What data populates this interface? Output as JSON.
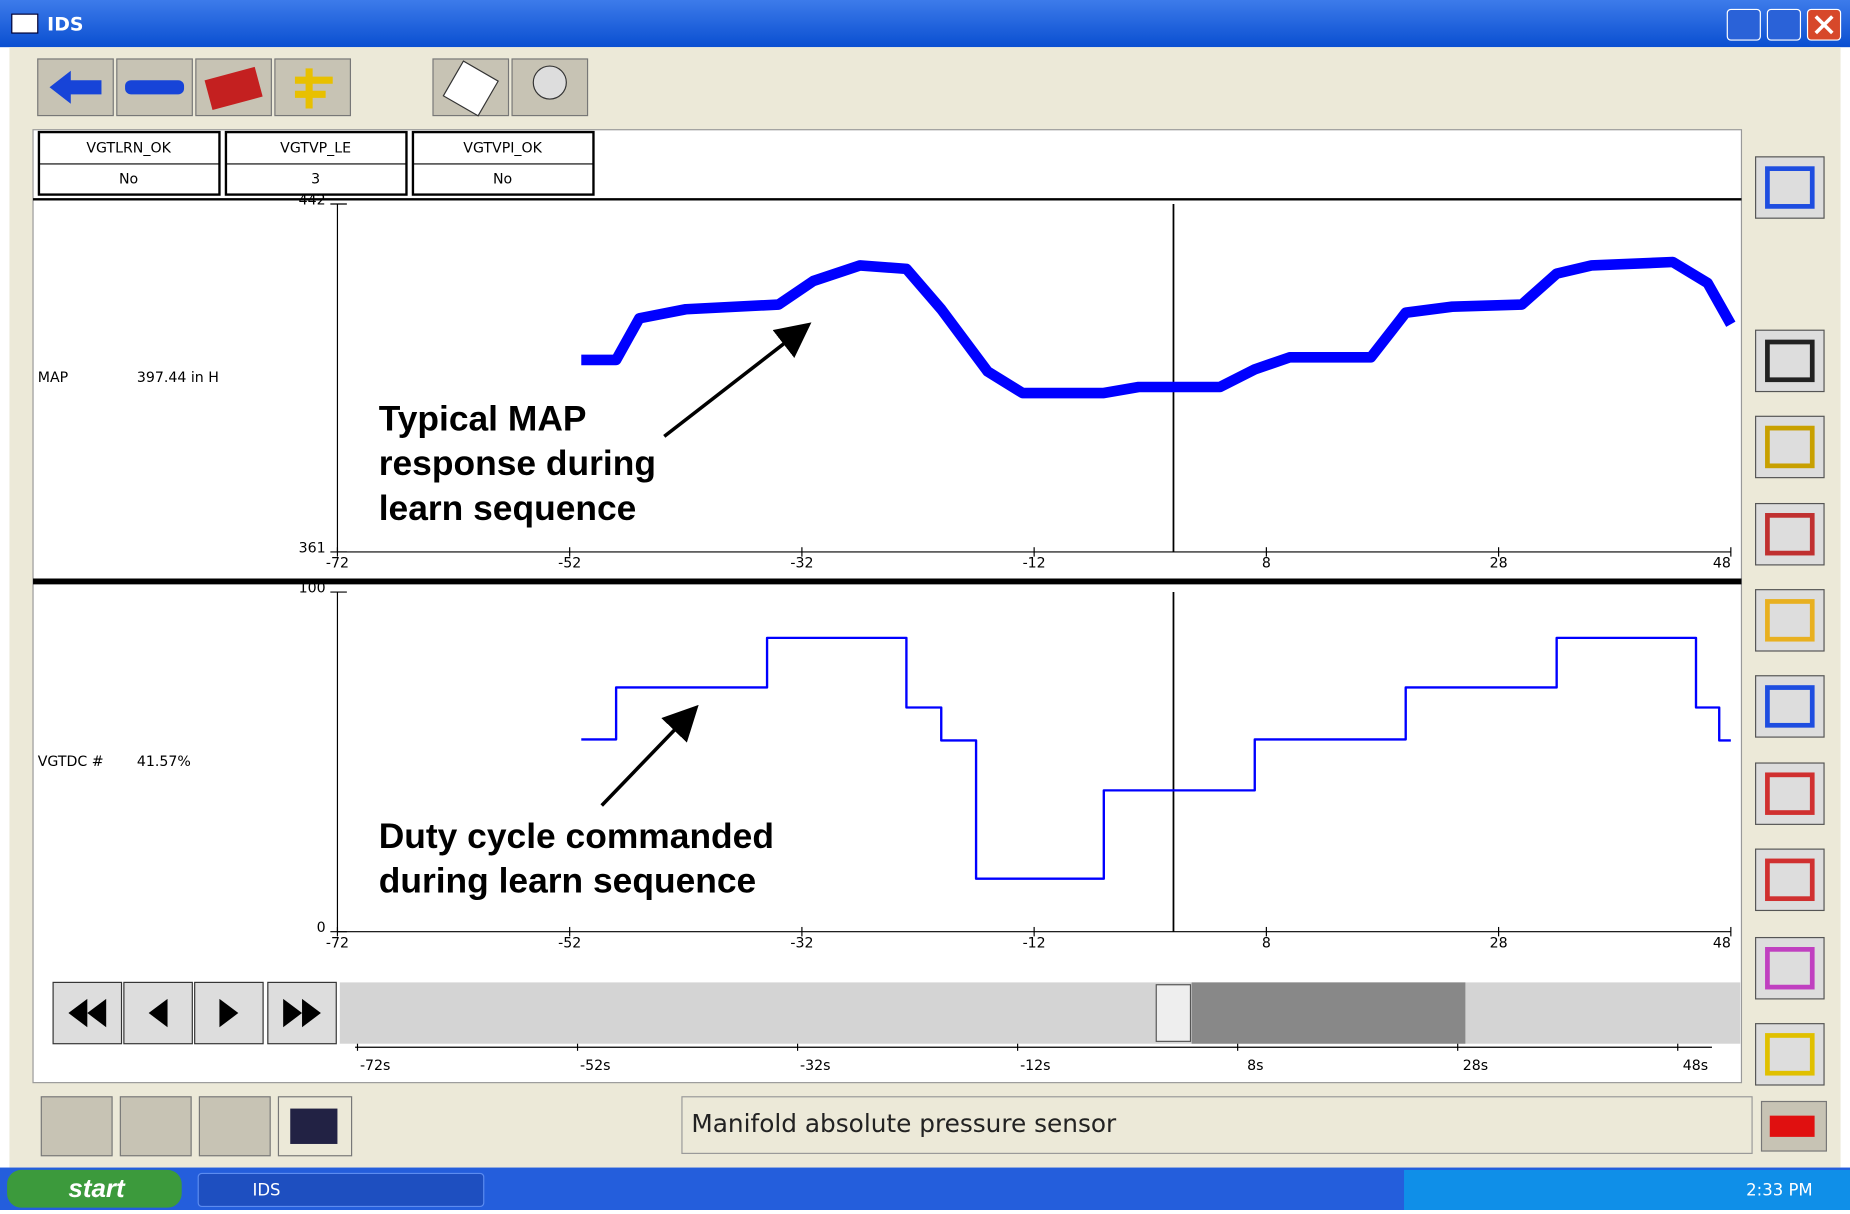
{
  "window": {
    "title": "IDS"
  },
  "parameters": [
    {
      "name": "VGTLRN_OK",
      "value": "No"
    },
    {
      "name": "VGTVP_LE",
      "value": 3
    },
    {
      "name": "VGTVPI_OK",
      "value": "No"
    }
  ],
  "chart_data": [
    {
      "type": "line",
      "readout": "397.44 in H",
      "annotation": [
        "Typical MAP",
        "response during",
        "learn sequence"
      ],
      "xlim": [
        -72,
        48
      ],
      "xticks": [
        -72,
        -52,
        -32,
        -12,
        8,
        28,
        48
      ],
      "ylim": [
        361,
        442
      ],
      "yticks": [
        361,
        442
      ],
      "cursor": 0,
      "x": [
        -51,
        -48,
        -46,
        -42,
        -34,
        -31,
        -27,
        -23,
        -20,
        -16,
        -13,
        -6,
        -3,
        4,
        7,
        10,
        17,
        20,
        24,
        30,
        33,
        36,
        43,
        46,
        48
      ],
      "series": [
        {
          "name": "MAP",
          "color": "#0000ff",
          "values": [
            405.7,
            405.7,
            415.4,
            417.5,
            418.6,
            424.1,
            427.7,
            426.9,
            417.5,
            403.0,
            398.0,
            398.0,
            399.4,
            399.4,
            403.5,
            406.3,
            406.3,
            416.7,
            418.1,
            418.6,
            425.8,
            427.7,
            428.5,
            423.6,
            414.0
          ]
        }
      ]
    },
    {
      "type": "line",
      "readout": "41.57%",
      "annotation": [
        "Duty cycle commanded",
        "during learn sequence"
      ],
      "xlim": [
        -72,
        48
      ],
      "xticks": [
        -72,
        -52,
        -32,
        -12,
        8,
        28,
        48
      ],
      "ylim": [
        0,
        100
      ],
      "yticks": [
        0,
        100
      ],
      "cursor": 0,
      "x": [
        -51,
        -48,
        -48,
        -35,
        -35,
        -23,
        -23,
        -20,
        -20,
        -17,
        -17,
        -6,
        -6,
        7,
        7,
        20,
        20,
        33,
        33,
        45,
        45,
        47,
        47,
        48
      ],
      "series": [
        {
          "name": "VGTDC #",
          "color": "#0000ff",
          "values": [
            56.6,
            56.6,
            71.9,
            71.9,
            86.5,
            86.5,
            66.0,
            66.0,
            56.3,
            56.3,
            15.6,
            15.6,
            41.6,
            41.6,
            56.6,
            56.6,
            71.9,
            71.9,
            86.5,
            86.5,
            66.0,
            66.0,
            56.3,
            56.3
          ]
        }
      ]
    }
  ],
  "scrollbar": {
    "ticks": [
      "-72s",
      "-52s",
      "-32s",
      "-12s",
      "8s",
      "28s",
      "48s"
    ]
  },
  "status": "Manifold absolute pressure sensor",
  "taskbar": {
    "start": "start",
    "task": "IDS",
    "clock": "2:33 PM"
  }
}
